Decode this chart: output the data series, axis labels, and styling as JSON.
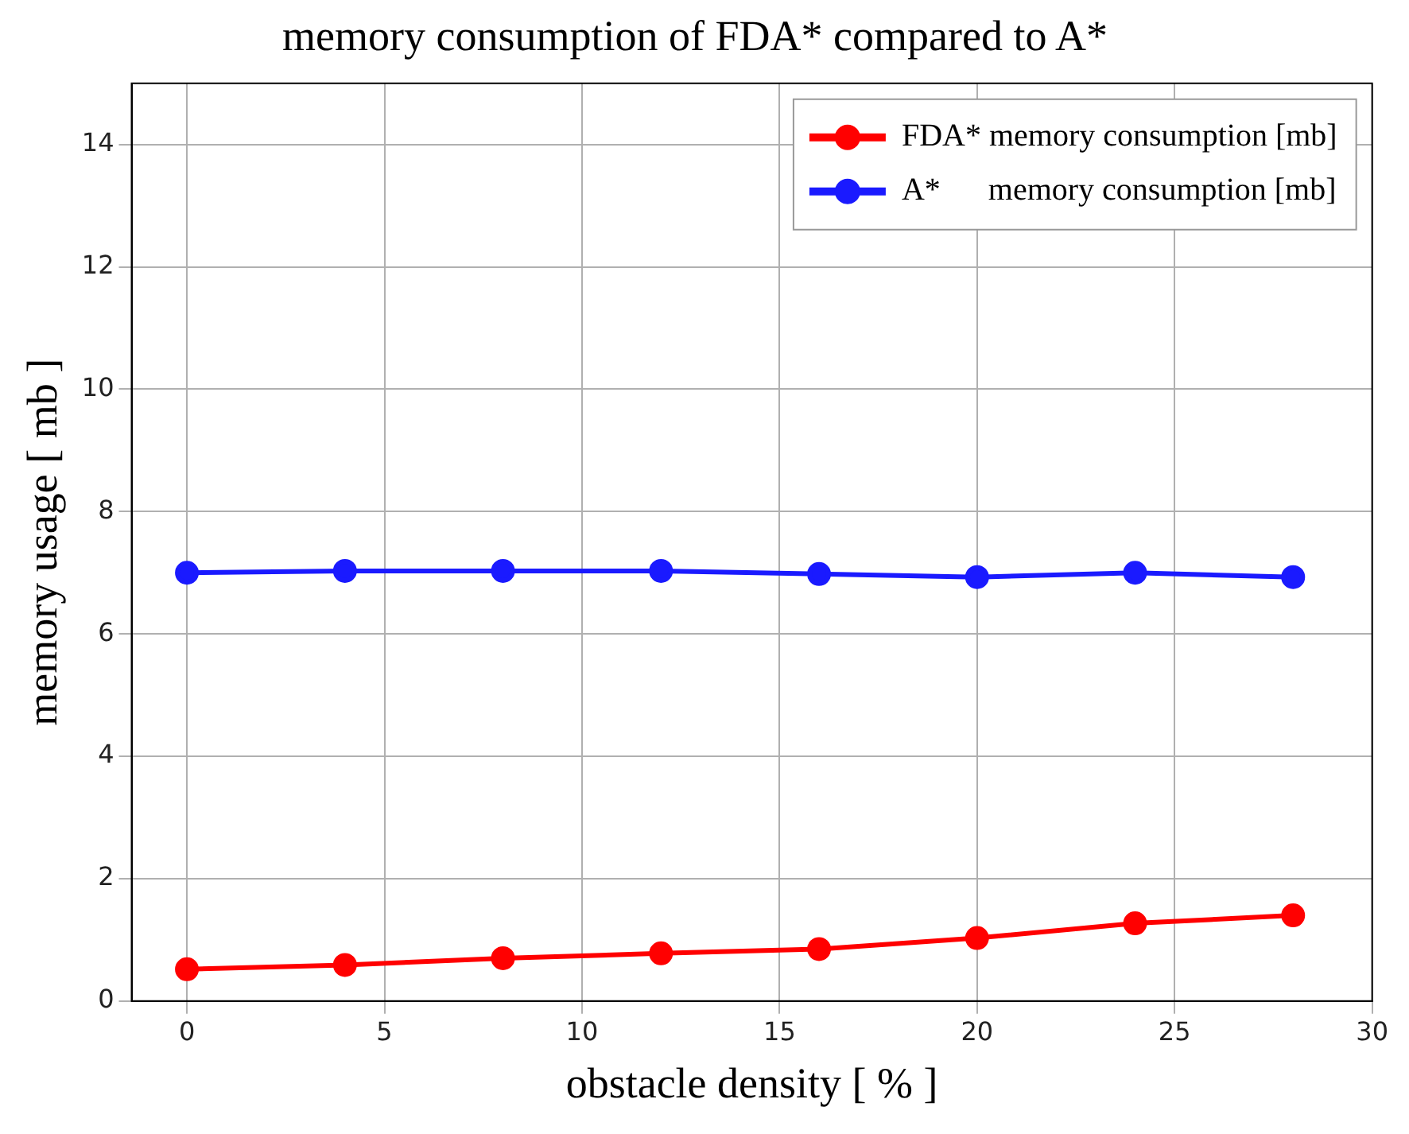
{
  "chart_data": {
    "type": "line",
    "title": "memory consumption of FDA* compared to A*",
    "xlabel": "obstacle density [ % ]",
    "ylabel": "memory usage [ mb ]",
    "x": [
      0,
      4,
      8,
      12,
      16,
      20,
      24,
      28
    ],
    "series": [
      {
        "name": "FDA* memory consumption [mb]",
        "color": "#ff0000",
        "values": [
          0.52,
          0.59,
          0.7,
          0.78,
          0.85,
          1.03,
          1.27,
          1.4
        ]
      },
      {
        "name": "A*      memory consumption [mb]",
        "color": "#1a1aff",
        "values": [
          7.0,
          7.03,
          7.03,
          7.03,
          6.98,
          6.93,
          7.0,
          6.93
        ]
      }
    ],
    "xlim": [
      -1.4,
      30
    ],
    "xticks": [
      0,
      5,
      10,
      15,
      20,
      25,
      30
    ],
    "ylim": [
      0,
      15
    ],
    "yticks": [
      0,
      2,
      4,
      6,
      8,
      10,
      12,
      14
    ],
    "grid": true,
    "legend": "top right",
    "marker": "circle",
    "line_style": "solid"
  }
}
